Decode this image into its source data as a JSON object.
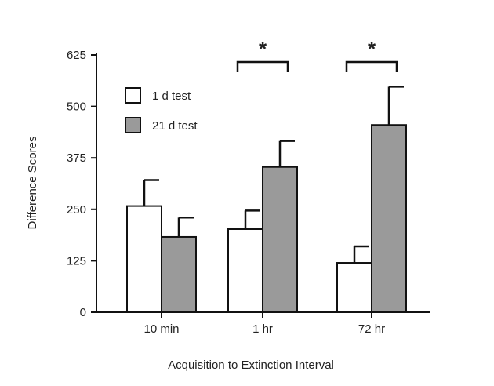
{
  "chart_data": {
    "type": "bar",
    "categories": [
      "10 min",
      "1 hr",
      "72 hr"
    ],
    "series": [
      {
        "name": "1 d test",
        "values": [
          258,
          202,
          120
        ],
        "errors": [
          63,
          45,
          40
        ],
        "color": "#ffffff"
      },
      {
        "name": "21 d test",
        "values": [
          183,
          353,
          455
        ],
        "errors": [
          47,
          63,
          93
        ],
        "color": "#9a9a9a"
      }
    ],
    "xlabel": "Acquisition to Extinction Interval",
    "ylabel": "Difference Scores",
    "ylim": [
      0,
      625
    ],
    "yticks": [
      0,
      125,
      250,
      375,
      500,
      625
    ],
    "grid": false,
    "legend": "top-left",
    "significance": [
      {
        "category": "1 hr",
        "label": "*"
      },
      {
        "category": "72 hr",
        "label": "*"
      }
    ]
  }
}
